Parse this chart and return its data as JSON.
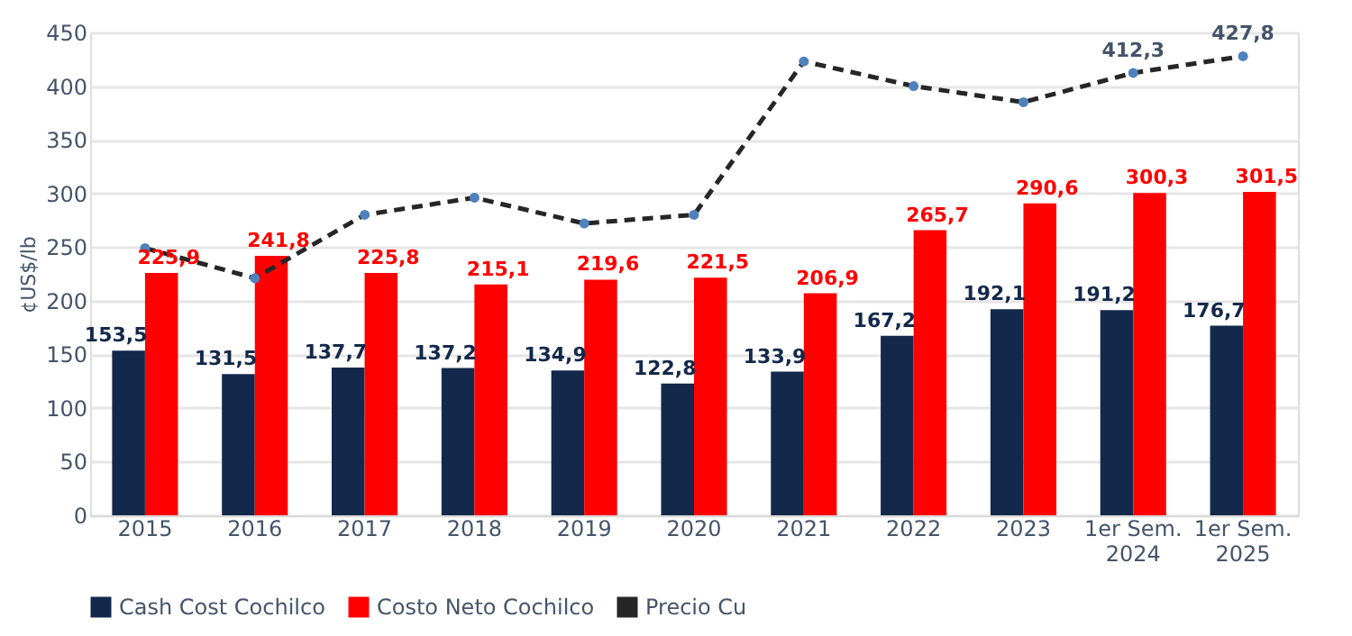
{
  "chart_data": {
    "type": "bar",
    "ylabel": "¢US$/lb",
    "categories": [
      "2015",
      "2016",
      "2017",
      "2018",
      "2019",
      "2020",
      "2021",
      "2022",
      "2023",
      "1er Sem.\n2024",
      "1er Sem.\n2025"
    ],
    "ylim": [
      0,
      450
    ],
    "yticks": [
      0,
      50,
      100,
      150,
      200,
      250,
      300,
      350,
      400,
      450
    ],
    "grid": "y",
    "legend": "bottom",
    "series": [
      {
        "name": "Cash Cost Cochilco",
        "color": "#13294b",
        "values": [
          153.5,
          131.5,
          137.7,
          137.2,
          134.9,
          122.8,
          133.9,
          167.2,
          192.1,
          191.2,
          176.7
        ],
        "value_labels": [
          "153,5",
          "131,5",
          "137,7",
          "137,2",
          "134,9",
          "122,8",
          "133,9",
          "167,2",
          "192,1",
          "191,2",
          "176,7"
        ]
      },
      {
        "name": "Costo Neto Cochilco",
        "color": "#ff0000",
        "values": [
          225.9,
          241.8,
          225.8,
          215.1,
          219.6,
          221.5,
          206.9,
          265.7,
          290.6,
          300.3,
          301.5
        ],
        "value_labels": [
          "225,9",
          "241,8",
          "225,8",
          "215,1",
          "219,6",
          "221,5",
          "206,9",
          "265,7",
          "290,6",
          "300,3",
          "301,5"
        ]
      },
      {
        "name": "Precio Cu",
        "type": "line",
        "color": "#262626",
        "line_style": "dashed",
        "marker": "circle",
        "values": [
          249,
          221,
          280,
          296,
          272,
          280,
          423,
          400,
          385,
          412.3,
          427.8
        ],
        "value_labels": [
          null,
          null,
          null,
          null,
          null,
          null,
          null,
          null,
          null,
          "412,3",
          "427,8"
        ]
      }
    ]
  }
}
